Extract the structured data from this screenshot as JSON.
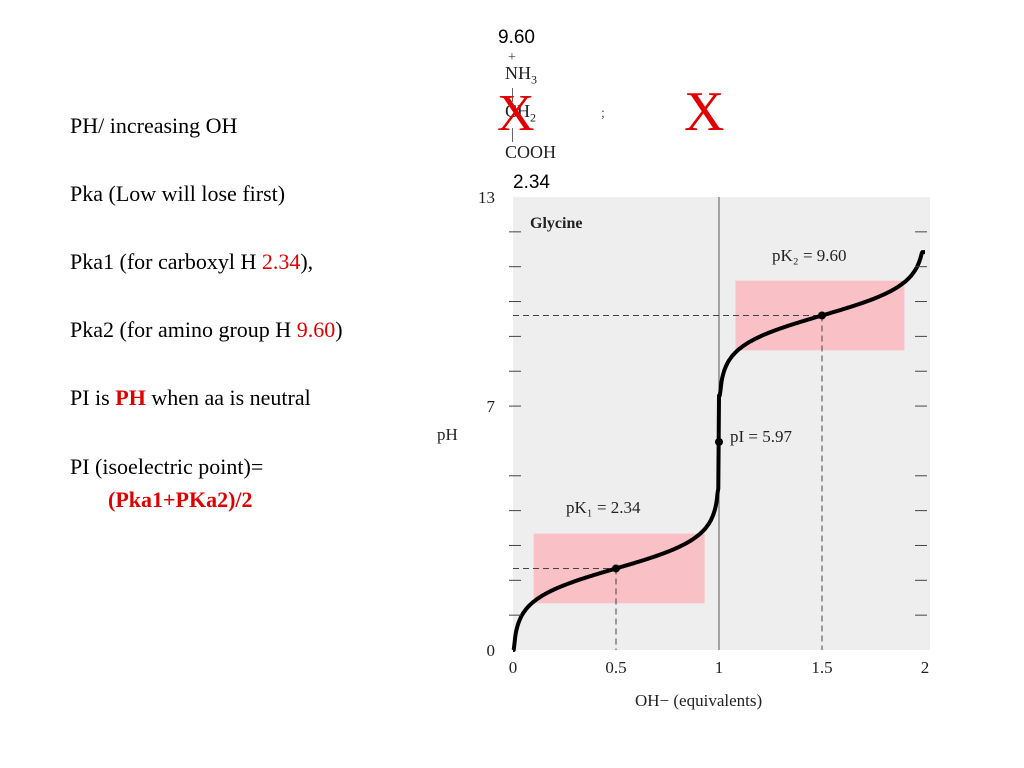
{
  "notes": {
    "line1": "PH/ increasing OH",
    "line2": "Pka (Low will lose first)",
    "line3_prefix": "Pka1 (for carboxyl H ",
    "line3_value": "2.34",
    "line3_suffix": "),",
    "line4_prefix": "Pka2 (for amino group H ",
    "line4_value": "9.60",
    "line4_suffix": ")",
    "line5_prefix": "PI is ",
    "line5_highlight": "PH",
    "line5_suffix": " when aa is neutral",
    "line6": "PI (isoelectric point)=",
    "line7": "(Pka1+PKa2)/2"
  },
  "structure": {
    "top_value": "9.60",
    "plus": "+",
    "nh3": "NH",
    "nh3_sub": "3",
    "ch2": "CH",
    "ch2_sub": "2",
    "cooh": "COOH",
    "bottom_value": "2.34",
    "semicolon": ";",
    "mark1": "X",
    "mark2": "X"
  },
  "colors": {
    "accent_red": "#e00000",
    "band_pink": "#f9c0c6",
    "plot_bg": "#eeeeee"
  },
  "chart_data": {
    "type": "line",
    "title": "Glycine",
    "xlabel": "OH− (equivalents)",
    "ylabel": "pH",
    "xlim": [
      0,
      2
    ],
    "ylim": [
      0,
      13
    ],
    "x_ticks": [
      "0",
      "0.5",
      "1",
      "1.5",
      "2"
    ],
    "y_ticks": [
      "0",
      "7",
      "13"
    ],
    "annotations": {
      "pk1": "pK₁ = 2.34",
      "pk2": "pK₂ = 9.60",
      "pi": "pI = 5.97"
    },
    "pk1": 2.34,
    "pk2": 9.6,
    "pi": 5.97,
    "key_points": [
      {
        "x": 0.5,
        "y": 2.34
      },
      {
        "x": 1.0,
        "y": 5.97
      },
      {
        "x": 1.5,
        "y": 9.6
      }
    ],
    "buffer_bands": [
      {
        "x": [
          0.1,
          0.93
        ],
        "y": [
          1.34,
          3.34
        ]
      },
      {
        "x": [
          1.08,
          1.9
        ],
        "y": [
          8.6,
          10.6
        ]
      }
    ],
    "grid": false
  }
}
